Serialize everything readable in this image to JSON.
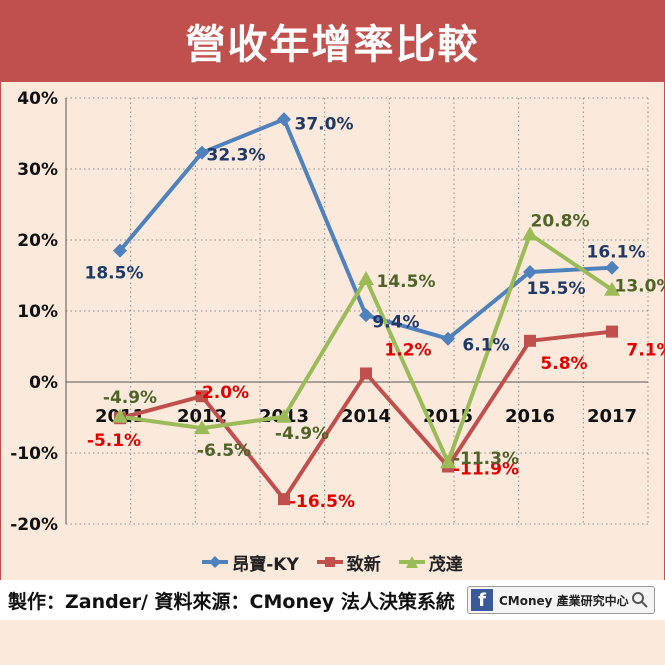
{
  "title": "營收年增率比較",
  "footer": {
    "text": "製作：Zander/ 資料來源：CMoney 法人決策系統",
    "badge_text": "CMoney 產業研究中心",
    "badge_icon": "facebook-icon"
  },
  "chart_data": {
    "type": "line",
    "title": "營收年增率比較",
    "categories": [
      "2011",
      "2012",
      "2013",
      "2014",
      "2015",
      "2016",
      "2017"
    ],
    "ylim": [
      -20,
      40
    ],
    "yticks": [
      -20,
      -10,
      0,
      10,
      20,
      30,
      40
    ],
    "ytick_labels": [
      "-20%",
      "-10%",
      "0%",
      "10%",
      "20%",
      "30%",
      "40%"
    ],
    "grid": true,
    "legend": "bottom",
    "series": [
      {
        "name": "昂寶-KY",
        "color": "#4f81bd",
        "label_color": "#1f3864",
        "marker": "diamond",
        "values": [
          18.5,
          32.3,
          37.0,
          9.4,
          6.1,
          15.5,
          16.1
        ],
        "labels": [
          "18.5%",
          "32.3%",
          "37.0%",
          "9.4%",
          "6.1%",
          "15.5%",
          "16.1%"
        ]
      },
      {
        "name": "致新",
        "color": "#c0504d",
        "label_color": "#e00000",
        "marker": "square",
        "values": [
          -5.1,
          -2.0,
          -16.5,
          1.2,
          -11.9,
          5.8,
          7.1
        ],
        "labels": [
          "-5.1%",
          "-2.0%",
          "-16.5%",
          "1.2%",
          "-11.9%",
          "5.8%",
          "7.1%"
        ]
      },
      {
        "name": "茂達",
        "color": "#9bbb59",
        "label_color": "#4f6228",
        "marker": "triangle",
        "values": [
          -4.9,
          -6.5,
          -4.9,
          14.5,
          -11.3,
          20.8,
          13.0
        ],
        "labels": [
          "-4.9%",
          "-6.5%",
          "-4.9%",
          "14.5%",
          "-11.3%",
          "20.8%",
          "13.0%"
        ]
      }
    ]
  }
}
